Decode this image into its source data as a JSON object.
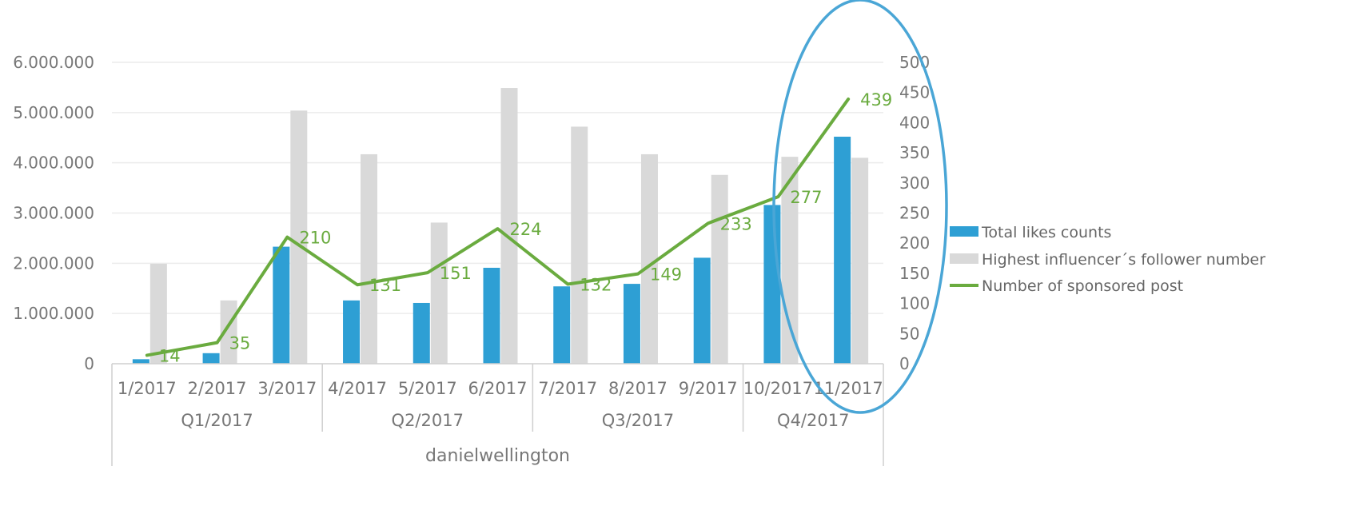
{
  "chart_data": {
    "type": "bar+line",
    "categories": [
      "1/2017",
      "2/2017",
      "3/2017",
      "4/2017",
      "5/2017",
      "6/2017",
      "7/2017",
      "8/2017",
      "9/2017",
      "10/2017",
      "11/2017"
    ],
    "groups": [
      {
        "label": "Q1/2017",
        "span": 3
      },
      {
        "label": "Q2/2017",
        "span": 3
      },
      {
        "label": "Q3/2017",
        "span": 3
      },
      {
        "label": "Q4/2017",
        "span": 2
      }
    ],
    "top_label": "danielwellington",
    "series": [
      {
        "name": "Total likes counts",
        "type": "bar",
        "axis": "left",
        "color": "#2e9fd4",
        "values": [
          90000,
          210000,
          2330000,
          1260000,
          1210000,
          1910000,
          1540000,
          1590000,
          2110000,
          3160000,
          4520000
        ]
      },
      {
        "name": "Highest influencer´s follower number",
        "type": "bar",
        "axis": "left",
        "color": "#d9d9d9",
        "values": [
          1990000,
          1260000,
          5040000,
          4170000,
          2810000,
          5490000,
          4720000,
          4170000,
          3760000,
          4120000,
          4100000
        ]
      },
      {
        "name": "Number of sponsored post",
        "type": "line",
        "axis": "right",
        "color": "#6aab3f",
        "values": [
          14,
          35,
          210,
          131,
          151,
          224,
          132,
          149,
          233,
          277,
          439
        ],
        "labels": [
          "14",
          "35",
          "210",
          "131",
          "151",
          "224",
          "132",
          "149",
          "233",
          "277",
          "439"
        ]
      }
    ],
    "y_left": {
      "min": 0,
      "max": 6000000,
      "step": 1000000,
      "tick_labels": [
        "0",
        "1.000.000",
        "2.000.000",
        "3.000.000",
        "4.000.000",
        "5.000.000",
        "6.000.000"
      ]
    },
    "y_right": {
      "min": 0,
      "max": 500,
      "step": 50,
      "tick_labels": [
        "0",
        "50",
        "100",
        "150",
        "200",
        "250",
        "300",
        "350",
        "400",
        "450",
        "500"
      ]
    },
    "grid": true,
    "legend_position": "right",
    "annotation": {
      "type": "ellipse",
      "color": "#4aa6d6",
      "around": [
        "10/2017",
        "11/2017"
      ]
    }
  }
}
